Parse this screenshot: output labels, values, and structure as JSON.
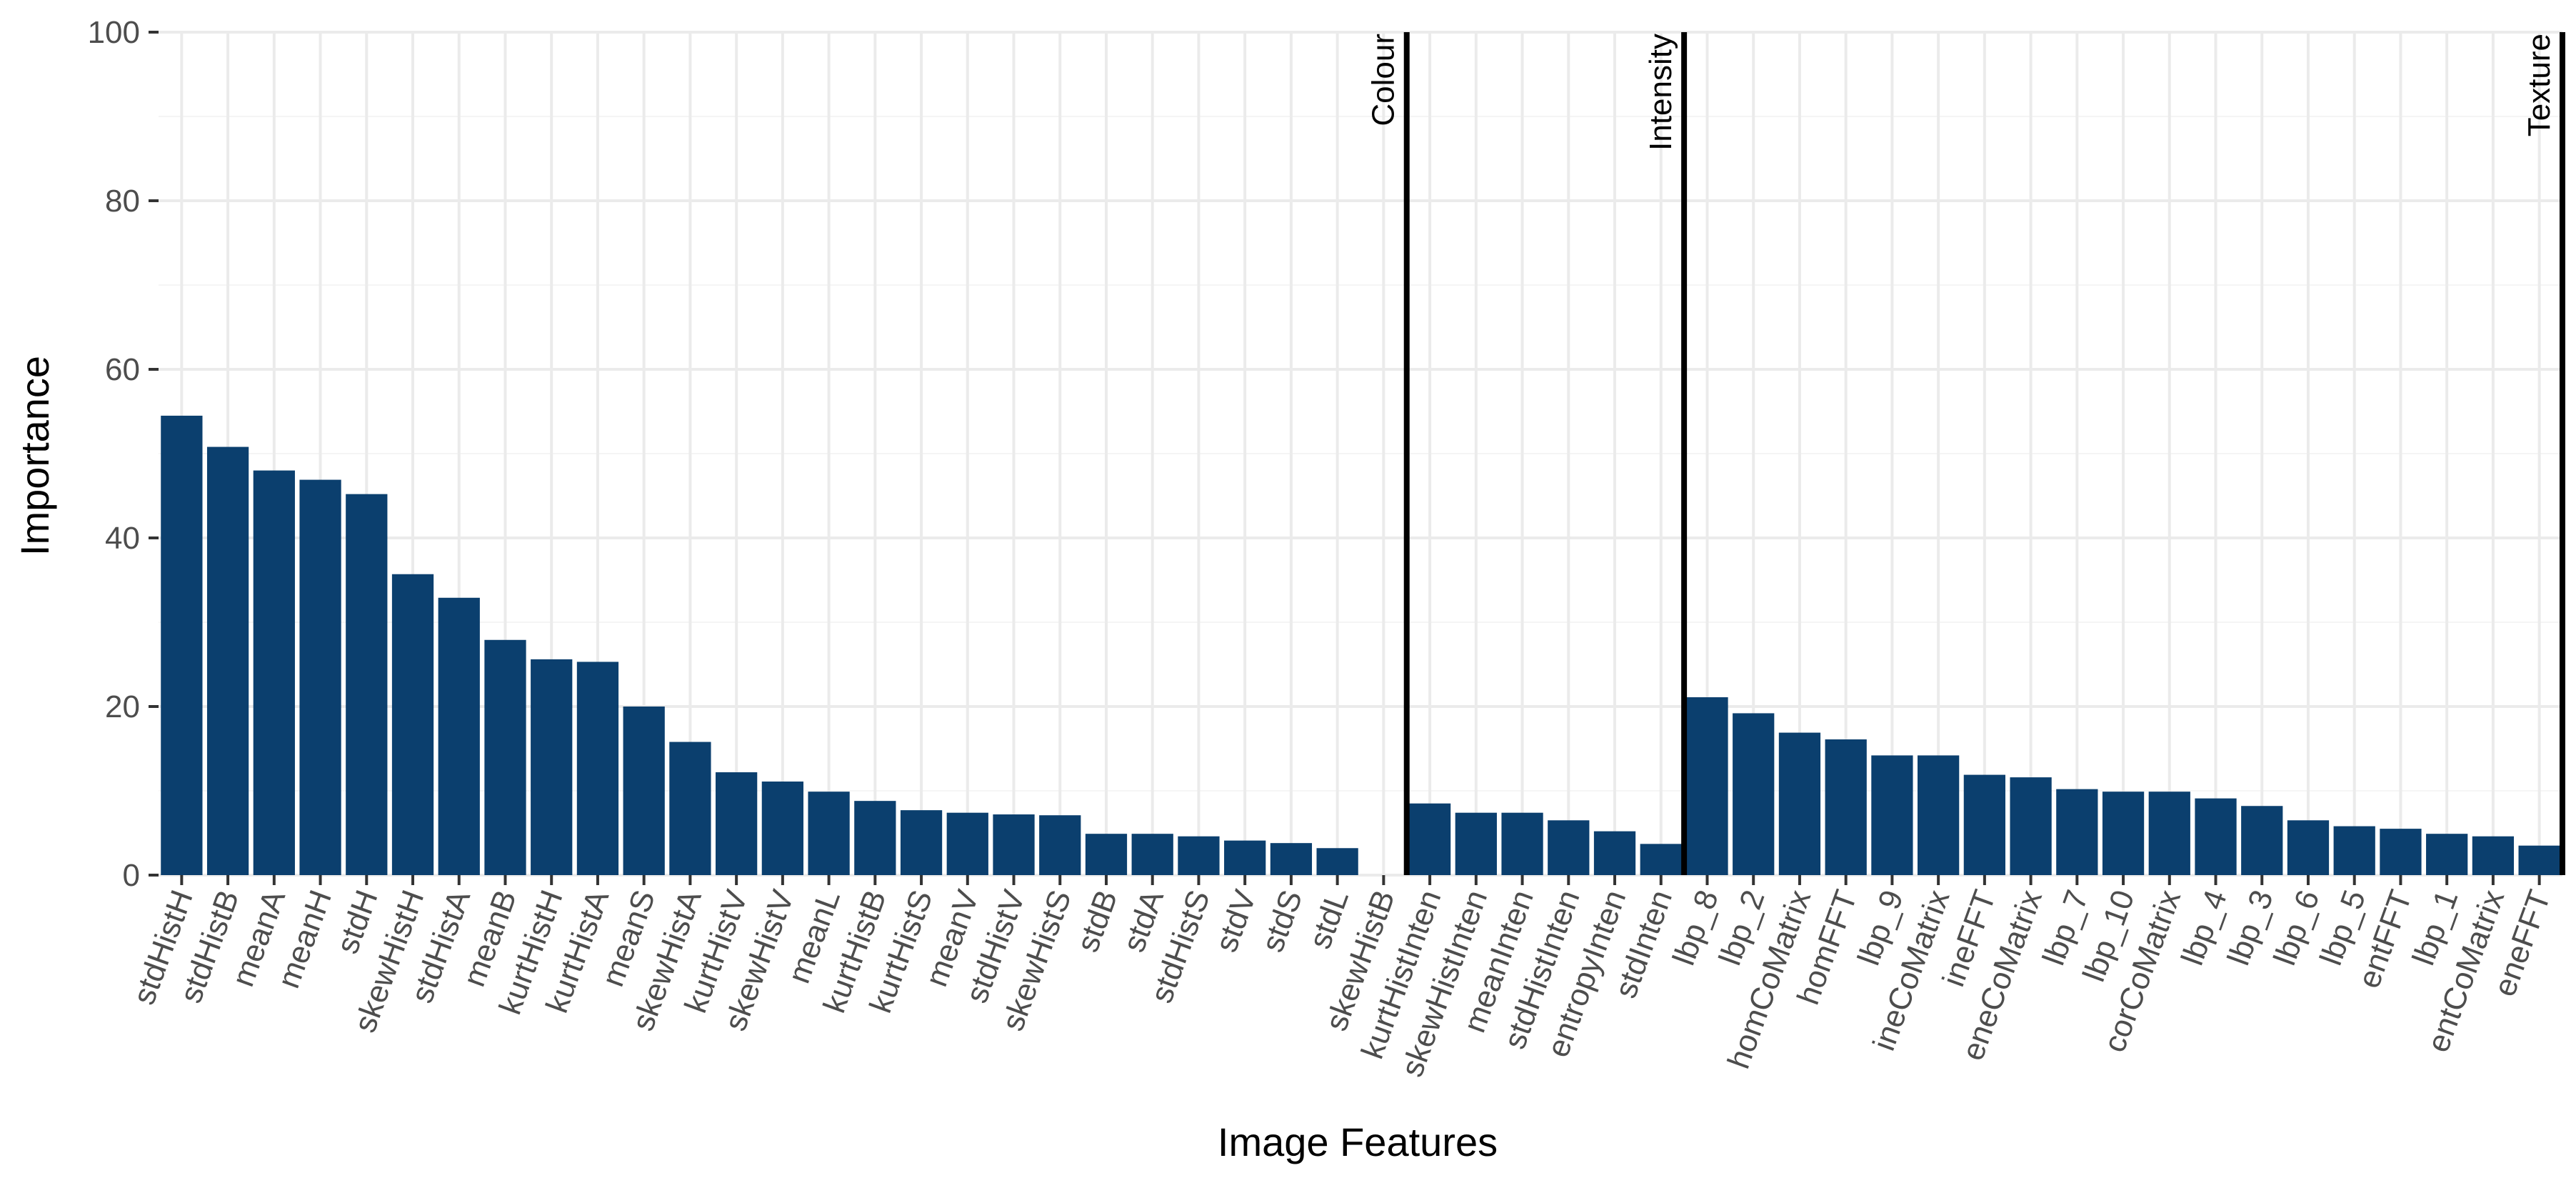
{
  "chart_data": {
    "type": "bar",
    "xlabel": "Image Features",
    "ylabel": "Importance",
    "ylim": [
      0,
      100
    ],
    "yticks": [
      0,
      20,
      40,
      60,
      80,
      100
    ],
    "grid": true,
    "bar_color": "#0b3f6e",
    "categories": [
      "stdHistH",
      "stdHistB",
      "meanA",
      "meanH",
      "stdH",
      "skewHistH",
      "stdHistA",
      "meanB",
      "kurtHistH",
      "kurtHistA",
      "meanS",
      "skewHistA",
      "kurtHistV",
      "skewHistV",
      "meanL",
      "kurtHistB",
      "kurtHistS",
      "meanV",
      "stdHistV",
      "skewHistS",
      "stdB",
      "stdA",
      "stdHistS",
      "stdV",
      "stdS",
      "stdL",
      "skewHistB",
      "kurtHistInten",
      "skewHistInten",
      "meanInten",
      "stdHistInten",
      "entropyInten",
      "stdInten",
      "lbp_8",
      "lbp_2",
      "homCoMatrix",
      "homFFT",
      "lbp_9",
      "ineCoMatrix",
      "ineFFT",
      "eneCoMatrix",
      "lbp_7",
      "lbp_10",
      "corCoMatrix",
      "lbp_4",
      "lbp_3",
      "lbp_6",
      "lbp_5",
      "entFFT",
      "lbp_1",
      "entCoMatrix",
      "eneFFT"
    ],
    "values": [
      54.5,
      50.8,
      48.0,
      46.9,
      45.2,
      35.7,
      32.9,
      27.9,
      25.6,
      25.3,
      20.0,
      15.8,
      12.2,
      11.1,
      9.9,
      8.8,
      7.7,
      7.4,
      7.2,
      7.1,
      4.9,
      4.9,
      4.6,
      4.1,
      3.8,
      3.2,
      0.0,
      8.5,
      7.4,
      7.4,
      6.5,
      5.2,
      3.7,
      21.1,
      19.2,
      16.9,
      16.1,
      14.2,
      14.2,
      11.9,
      11.6,
      10.2,
      9.9,
      9.9,
      9.1,
      8.2,
      6.5,
      5.8,
      5.5,
      4.9,
      4.6,
      3.5
    ],
    "group_boundaries": [
      {
        "label": "Colour",
        "after_index": 26
      },
      {
        "label": "Intensity",
        "after_index": 32
      },
      {
        "label": "Texture",
        "after_index": 51
      }
    ]
  }
}
